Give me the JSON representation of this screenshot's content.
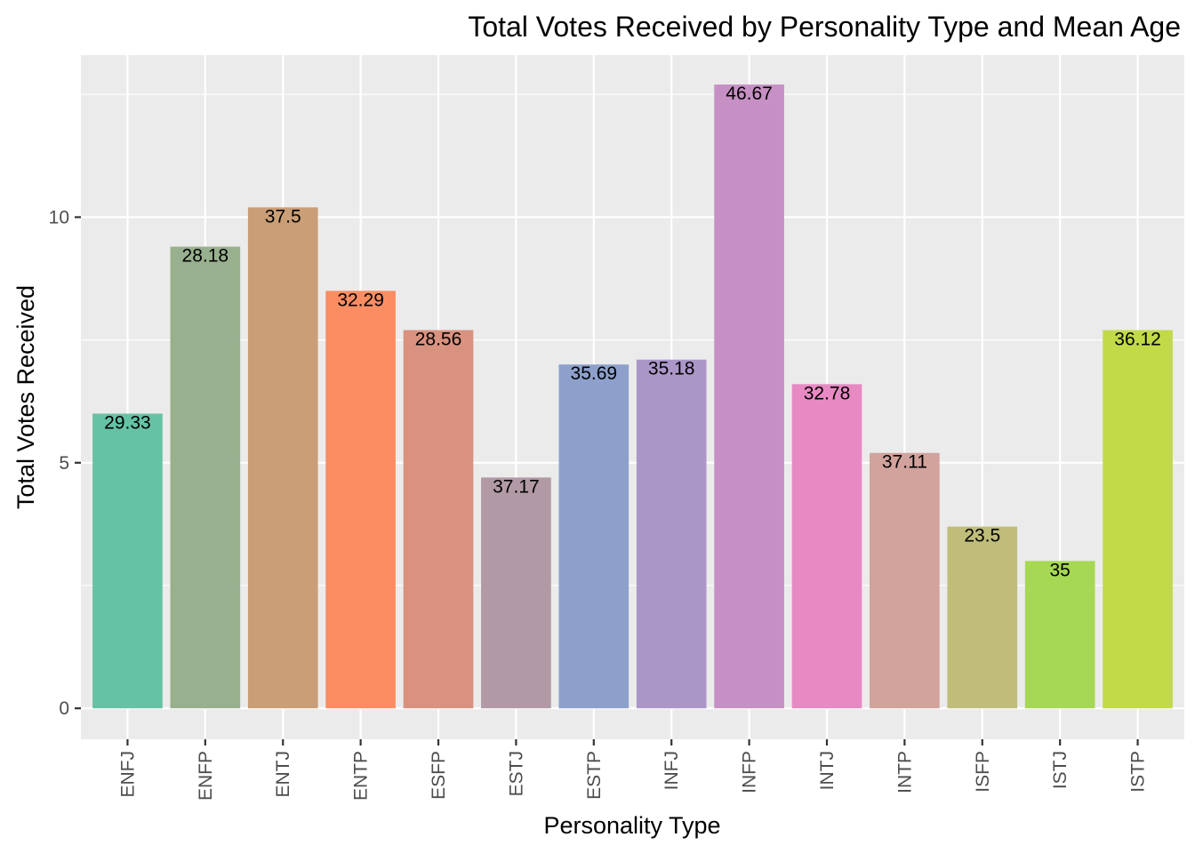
{
  "chart_data": {
    "type": "bar",
    "title": "Total Votes Received by Personality Type and Mean Age",
    "xlabel": "Personality Type",
    "ylabel": "Total Votes Received",
    "categories": [
      "ENFJ",
      "ENFP",
      "ENTJ",
      "ENTP",
      "ESFP",
      "ESTJ",
      "ESTP",
      "INFJ",
      "INFP",
      "INTJ",
      "INTP",
      "ISFP",
      "ISTJ",
      "ISTP"
    ],
    "values": [
      6.0,
      9.4,
      10.2,
      8.5,
      7.7,
      4.7,
      7.0,
      7.1,
      12.7,
      6.6,
      5.2,
      3.7,
      3.0,
      7.7
    ],
    "data_labels": [
      "29.33",
      "28.18",
      "37.5",
      "32.29",
      "28.56",
      "37.17",
      "35.69",
      "35.18",
      "46.67",
      "32.78",
      "37.11",
      "23.5",
      "35",
      "36.12"
    ],
    "colors": [
      "#66C2A5",
      "#98B08D",
      "#CA9E76",
      "#FC8D62",
      "#D8927F",
      "#B19AA5",
      "#8DA0CB",
      "#AB96C8",
      "#C790C4",
      "#E78AC3",
      "#D2A29D",
      "#BFBD79",
      "#A6D854",
      "#C2D948"
    ],
    "y_ticks": [
      0,
      5,
      10
    ],
    "ylim": [
      -0.63,
      13.3
    ],
    "grid": true,
    "legend": "none",
    "panel_background": "#EBEBEB",
    "grid_color": "#FFFFFF"
  }
}
